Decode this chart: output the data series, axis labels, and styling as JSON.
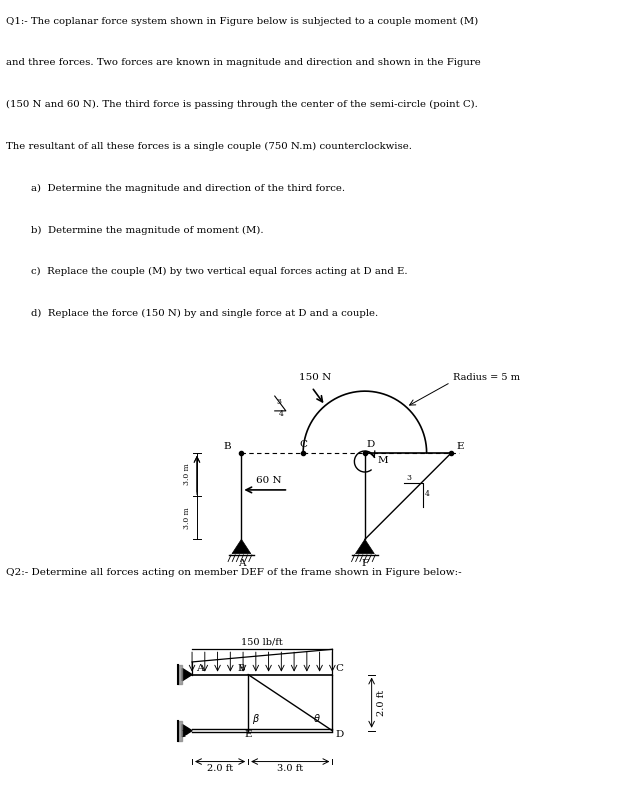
{
  "background_color": "#ffffff",
  "page_width": 6.31,
  "page_height": 8.0,
  "q1_text_lines": [
    "Q1:- The coplanar force system shown in Figure below is subjected to a couple moment (M)",
    "and three forces. Two forces are known in magnitude and direction and shown in the Figure",
    "(150 N and 60 N). The third force is passing through the center of the semi-circle (point C).",
    "The resultant of all these forces is a single couple (750 N.m) counterclockwise."
  ],
  "q1_items": [
    "a)  Determine the magnitude and direction of the third force.",
    "b)  Determine the magnitude of moment (M).",
    "c)  Replace the couple (M) by two vertical equal forces acting at D and E.",
    "d)  Replace the force (150 N) by and single force at D and a couple."
  ],
  "q2_text": "Q2:- Determine all forces acting on member DEF of the frame shown in Figure below:-",
  "radius_label": "Radius = 5 m",
  "force_150_label": "150 N",
  "force_60_label": "60 N",
  "dist_label_top": "3.0 m",
  "dist_label_bot": "3.0 m",
  "dist_q2_left": "2.0 ft",
  "dist_q2_right": "3.0 ft",
  "dist_q2_vert": "2.0 ft",
  "load_label": "150 lb/ft"
}
